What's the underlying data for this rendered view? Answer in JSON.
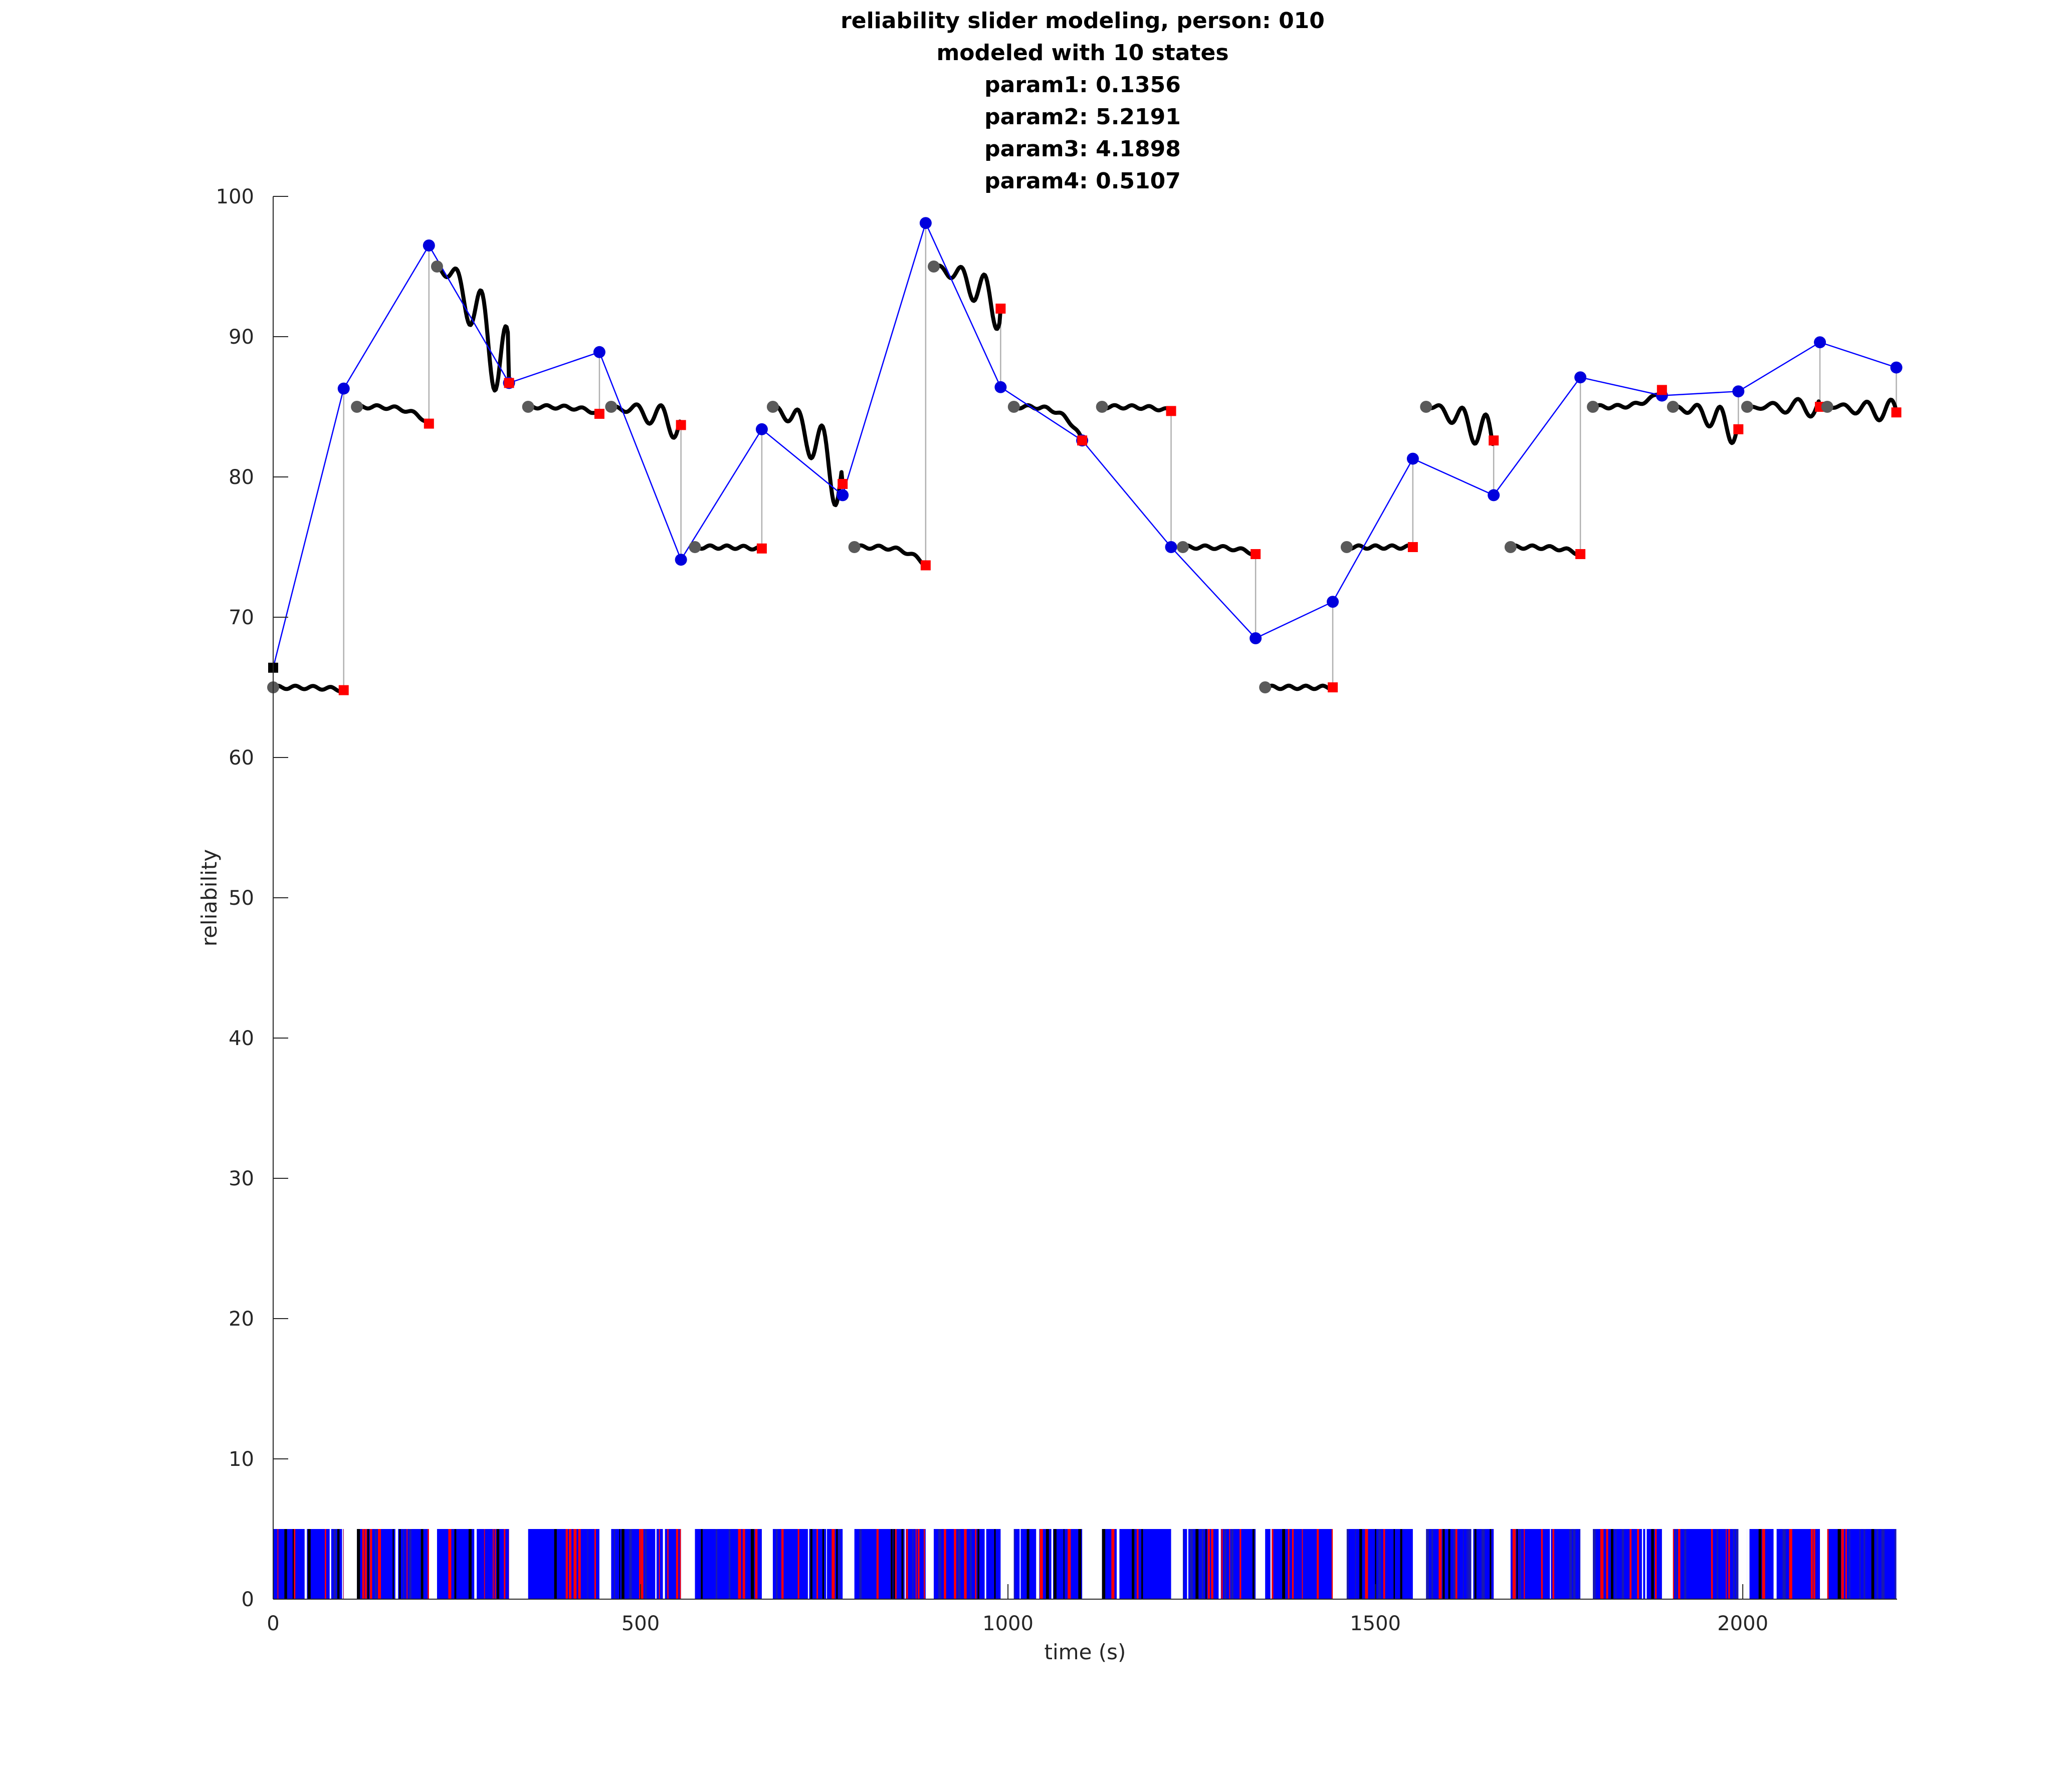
{
  "chart_data": {
    "type": "line",
    "title_lines": [
      "reliability slider modeling, person: 010",
      "modeled with 10 states",
      "param1: 0.1356",
      "param2: 5.2191",
      "param3: 4.1898",
      "param4: 0.5107"
    ],
    "xlabel": "time (s)",
    "ylabel": "reliability",
    "xlim": [
      0,
      2210
    ],
    "ylim": [
      0,
      100
    ],
    "x_ticks": [
      0,
      500,
      1000,
      1500,
      2000
    ],
    "y_ticks": [
      0,
      10,
      20,
      30,
      40,
      50,
      60,
      70,
      80,
      90,
      100
    ],
    "grid": false,
    "colors": {
      "model_line": "#0000ff",
      "model_points": "#0000dd",
      "slider_trace": "#000000",
      "segment_start": "#5a5a5a",
      "segment_end": "#ff0000",
      "connector": "#b0b0b0",
      "band_blue": "#0000ff",
      "band_red": "#ff0000",
      "band_black": "#000000"
    },
    "initial_marker": [
      0,
      66.4
    ],
    "model_points": [
      [
        0,
        66.4
      ],
      [
        96,
        86.3
      ],
      [
        212,
        96.5
      ],
      [
        321,
        86.7
      ],
      [
        444,
        88.9
      ],
      [
        555,
        74.1
      ],
      [
        665,
        83.4
      ],
      [
        775,
        78.7
      ],
      [
        888,
        98.1
      ],
      [
        990,
        86.4
      ],
      [
        1101,
        82.6
      ],
      [
        1222,
        75.0
      ],
      [
        1337,
        68.5
      ],
      [
        1442,
        71.1
      ],
      [
        1551,
        81.3
      ],
      [
        1661,
        78.7
      ],
      [
        1779,
        87.1
      ],
      [
        1890,
        85.8
      ],
      [
        1994,
        86.1
      ],
      [
        2105,
        89.6
      ],
      [
        2209,
        87.8
      ]
    ],
    "segments": [
      {
        "t0": 0,
        "t1": 96,
        "start": 65.0,
        "end": 64.8,
        "shape": "flat"
      },
      {
        "t0": 114,
        "t1": 212,
        "start": 85.0,
        "end": 83.8,
        "shape": "flat"
      },
      {
        "t0": 223,
        "t1": 321,
        "start": 95.0,
        "end": 86.7,
        "shape": "wavy"
      },
      {
        "t0": 347,
        "t1": 444,
        "start": 85.0,
        "end": 84.5,
        "shape": "flat"
      },
      {
        "t0": 460,
        "t1": 555,
        "start": 85.0,
        "end": 83.7,
        "shape": "wavy"
      },
      {
        "t0": 574,
        "t1": 665,
        "start": 75.0,
        "end": 74.9,
        "shape": "flat"
      },
      {
        "t0": 680,
        "t1": 775,
        "start": 85.0,
        "end": 79.5,
        "shape": "wavy"
      },
      {
        "t0": 791,
        "t1": 888,
        "start": 75.0,
        "end": 73.7,
        "shape": "flat"
      },
      {
        "t0": 899,
        "t1": 990,
        "start": 95.0,
        "end": 92.0,
        "shape": "wavy"
      },
      {
        "t0": 1008,
        "t1": 1101,
        "start": 85.0,
        "end": 82.6,
        "shape": "flat"
      },
      {
        "t0": 1128,
        "t1": 1222,
        "start": 85.0,
        "end": 84.7,
        "shape": "flat"
      },
      {
        "t0": 1238,
        "t1": 1337,
        "start": 75.0,
        "end": 74.5,
        "shape": "flat"
      },
      {
        "t0": 1350,
        "t1": 1442,
        "start": 65.0,
        "end": 65.0,
        "shape": "flat"
      },
      {
        "t0": 1461,
        "t1": 1551,
        "start": 75.0,
        "end": 75.0,
        "shape": "flat"
      },
      {
        "t0": 1569,
        "t1": 1661,
        "start": 85.0,
        "end": 82.6,
        "shape": "wavy"
      },
      {
        "t0": 1684,
        "t1": 1779,
        "start": 75.0,
        "end": 74.5,
        "shape": "flat"
      },
      {
        "t0": 1796,
        "t1": 1890,
        "start": 85.0,
        "end": 86.2,
        "shape": "flat"
      },
      {
        "t0": 1905,
        "t1": 1994,
        "start": 85.0,
        "end": 83.4,
        "shape": "wavy"
      },
      {
        "t0": 2006,
        "t1": 2105,
        "start": 85.0,
        "end": 85.0,
        "shape": "wavy"
      },
      {
        "t0": 2115,
        "t1": 2209,
        "start": 85.0,
        "end": 84.6,
        "shape": "wavy"
      }
    ],
    "event_band": {
      "y0": 0,
      "y1": 5
    }
  }
}
